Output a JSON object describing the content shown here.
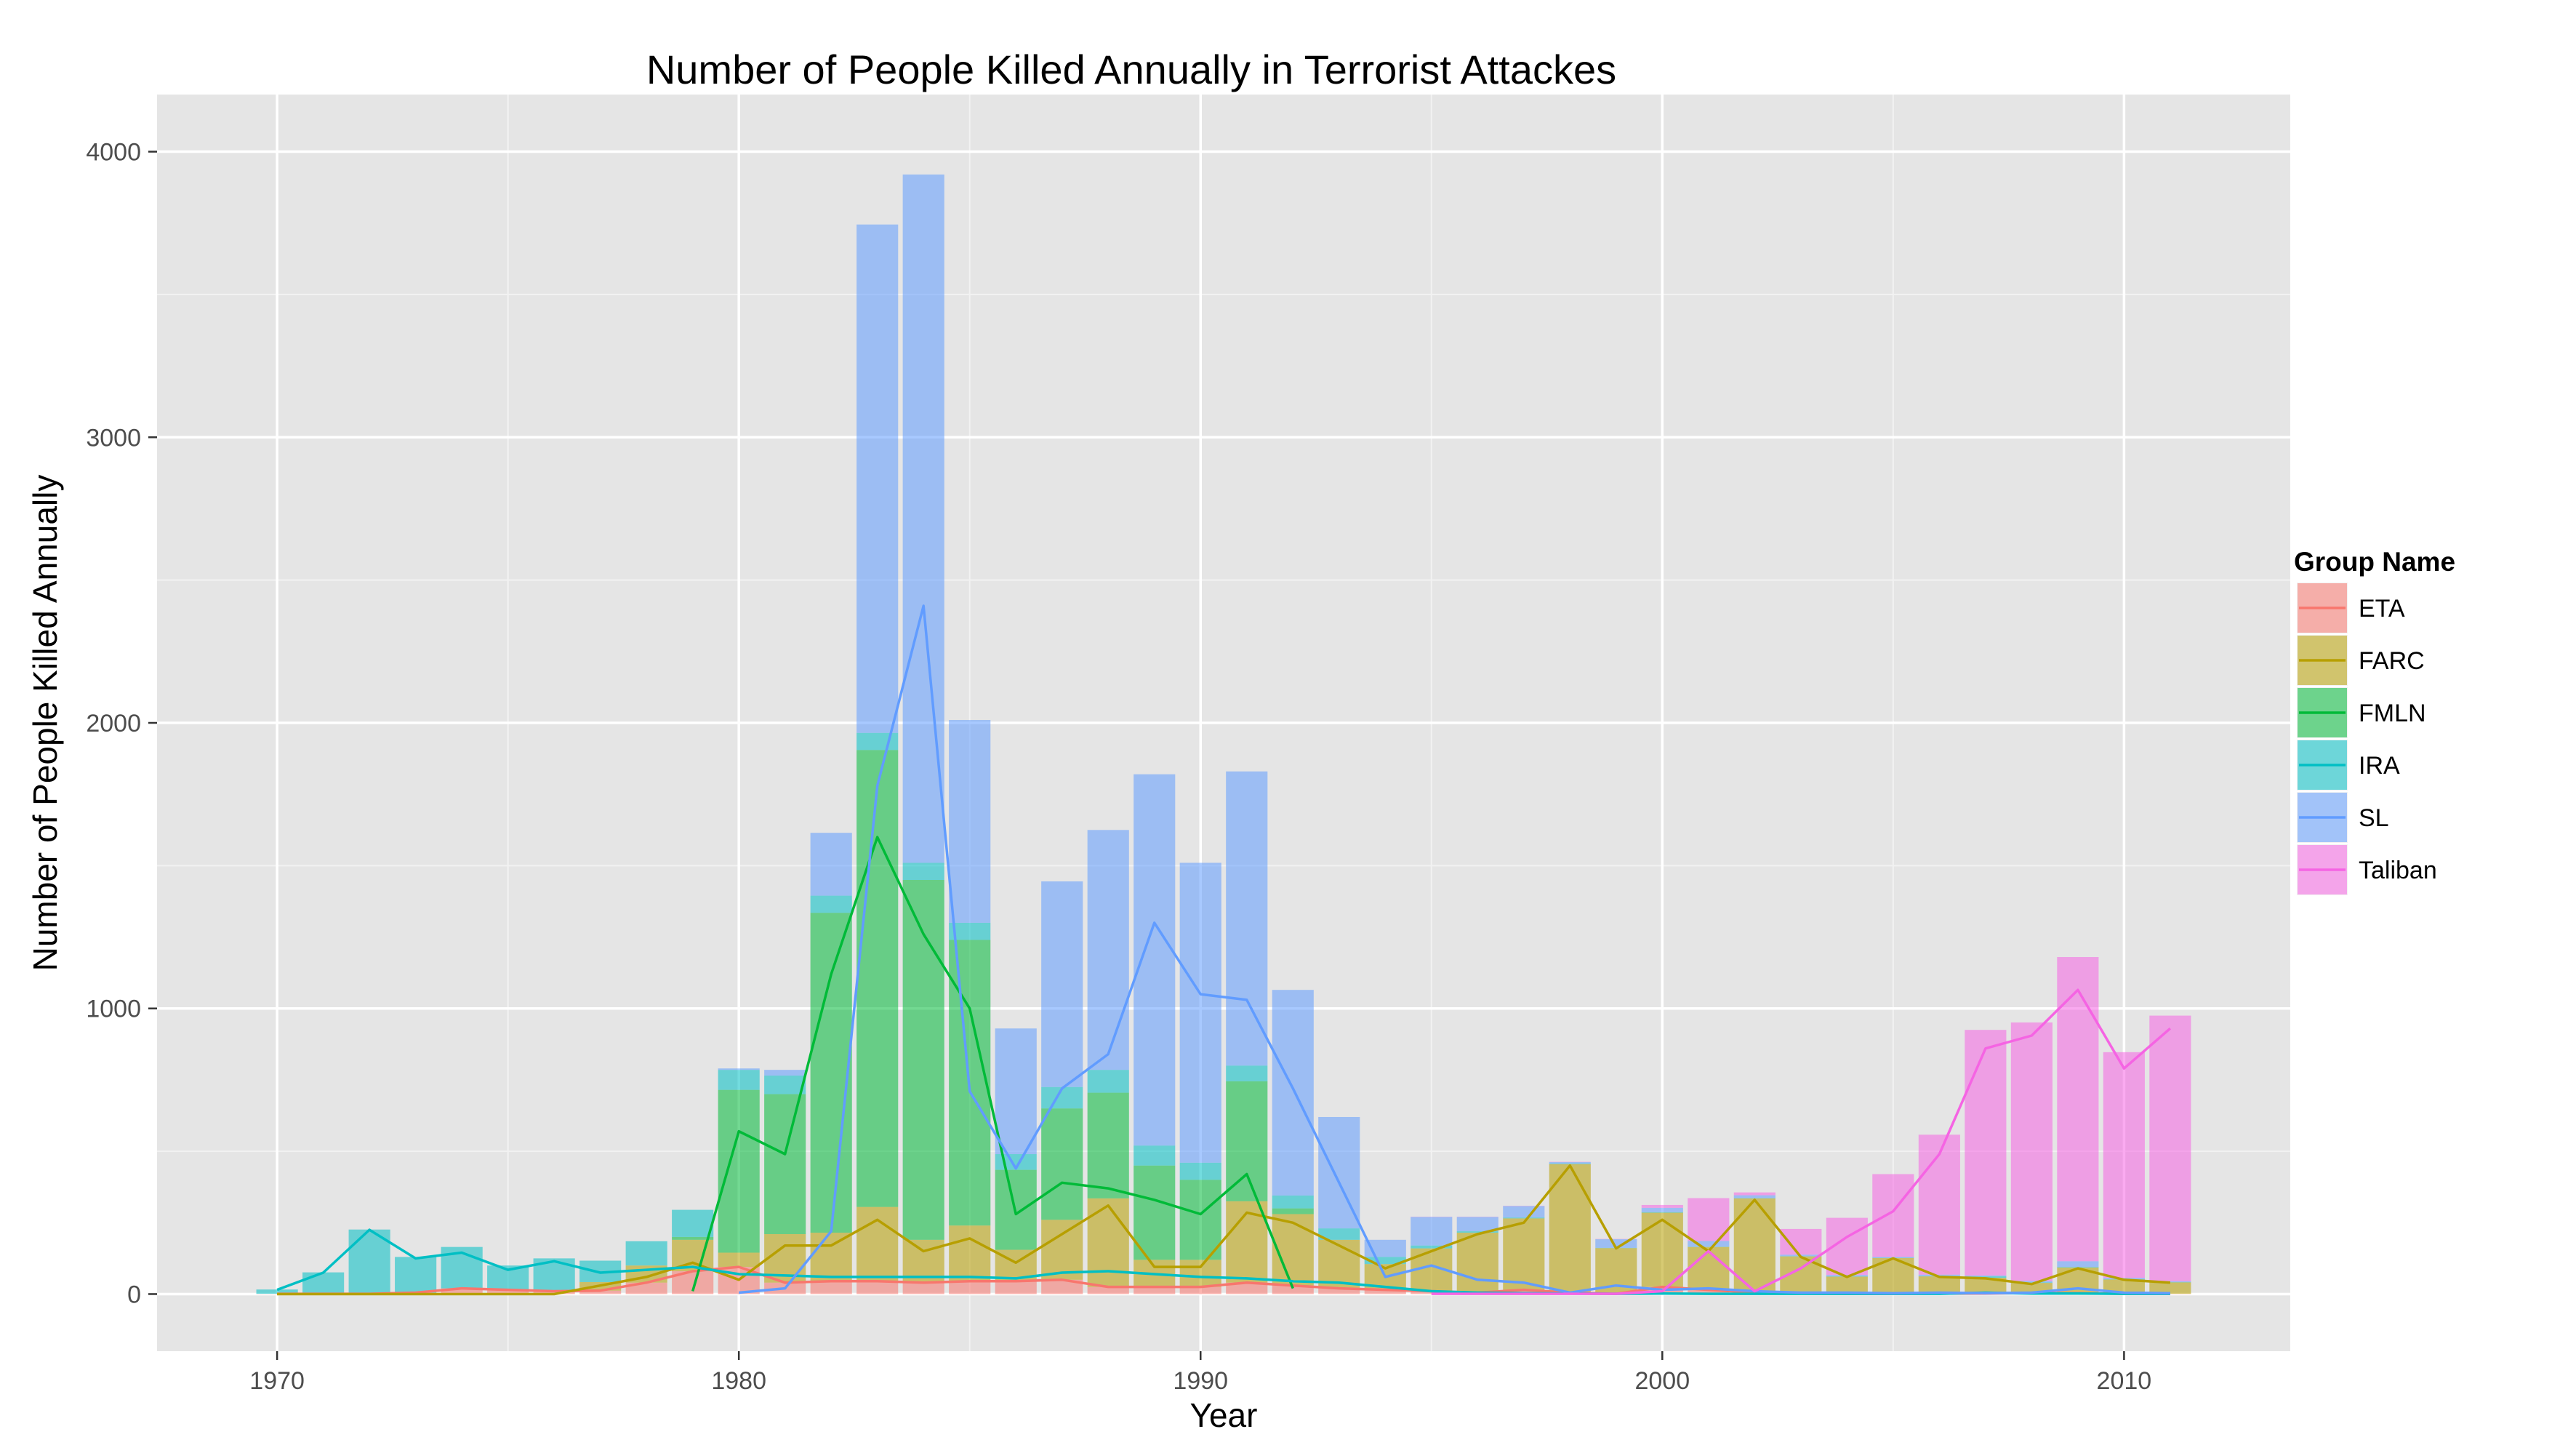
{
  "chart_data": {
    "type": "bar",
    "title": "Number of People Killed Annually in Terrorist Attackes",
    "xlabel": "Year",
    "ylabel": "Number of People Killed Annually",
    "xlim": [
      1967.4,
      2013.6
    ],
    "ylim": [
      -200,
      4200
    ],
    "x_ticks": [
      1970,
      1980,
      1990,
      2000,
      2010
    ],
    "y_ticks": [
      0,
      1000,
      2000,
      3000,
      4000
    ],
    "grid": true,
    "bar_stacking": "stacked",
    "legend": {
      "title": "Group Name",
      "position": "right",
      "entries": [
        "ETA",
        "FARC",
        "FMLN",
        "IRA",
        "SL",
        "Taliban"
      ]
    },
    "series": [
      {
        "name": "ETA",
        "color": "#F8766D",
        "x": [
          1970,
          1971,
          1972,
          1973,
          1974,
          1975,
          1976,
          1977,
          1978,
          1979,
          1980,
          1981,
          1982,
          1983,
          1984,
          1985,
          1986,
          1987,
          1988,
          1989,
          1990,
          1991,
          1992,
          1993,
          1994,
          1995,
          1996,
          1997,
          1998,
          1999,
          2000,
          2001,
          2002,
          2003,
          2004,
          2005,
          2006,
          2007,
          2008,
          2009,
          2010,
          2011
        ],
        "values": [
          1,
          1,
          1,
          5,
          20,
          15,
          10,
          12,
          40,
          80,
          95,
          40,
          45,
          45,
          40,
          45,
          45,
          50,
          25,
          25,
          25,
          40,
          30,
          20,
          15,
          10,
          5,
          15,
          5,
          1,
          25,
          15,
          5,
          2,
          1,
          1,
          2,
          2,
          4,
          3,
          1,
          1
        ]
      },
      {
        "name": "FARC",
        "color": "#B79F00",
        "x": [
          1970,
          1971,
          1972,
          1973,
          1974,
          1975,
          1976,
          1977,
          1978,
          1979,
          1980,
          1981,
          1982,
          1983,
          1984,
          1985,
          1986,
          1987,
          1988,
          1989,
          1990,
          1991,
          1992,
          1993,
          1994,
          1995,
          1996,
          1997,
          1998,
          1999,
          2000,
          2001,
          2002,
          2003,
          2004,
          2005,
          2006,
          2007,
          2008,
          2009,
          2010,
          2011
        ],
        "values": [
          0,
          0,
          0,
          0,
          0,
          0,
          0,
          30,
          60,
          110,
          50,
          170,
          170,
          260,
          150,
          195,
          110,
          210,
          310,
          95,
          95,
          285,
          250,
          170,
          90,
          150,
          210,
          250,
          450,
          160,
          260,
          150,
          330,
          130,
          60,
          125,
          60,
          55,
          35,
          90,
          50,
          40
        ]
      },
      {
        "name": "FMLN",
        "color": "#00BA38",
        "x": [
          1979,
          1980,
          1981,
          1982,
          1983,
          1984,
          1985,
          1986,
          1987,
          1988,
          1989,
          1990,
          1991,
          1992
        ],
        "values": [
          10,
          570,
          490,
          1120,
          1600,
          1260,
          1000,
          280,
          390,
          370,
          330,
          280,
          420,
          20
        ]
      },
      {
        "name": "IRA",
        "color": "#00BFC4",
        "x": [
          1970,
          1971,
          1972,
          1973,
          1974,
          1975,
          1976,
          1977,
          1978,
          1979,
          1980,
          1981,
          1982,
          1983,
          1984,
          1985,
          1986,
          1987,
          1988,
          1989,
          1990,
          1991,
          1992,
          1993,
          1994,
          1995,
          1996,
          1997,
          1998,
          1999,
          2000,
          2001,
          2002,
          2003,
          2004,
          2005,
          2006,
          2007,
          2008,
          2009,
          2010,
          2011
        ],
        "values": [
          15,
          75,
          225,
          125,
          145,
          85,
          115,
          75,
          85,
          95,
          70,
          65,
          60,
          60,
          60,
          60,
          55,
          75,
          80,
          70,
          60,
          55,
          45,
          40,
          25,
          10,
          5,
          3,
          2,
          1,
          2,
          1,
          1,
          1,
          1,
          1,
          1,
          5,
          2,
          2,
          1,
          1
        ]
      },
      {
        "name": "SL",
        "color": "#619CFF",
        "x": [
          1980,
          1981,
          1982,
          1983,
          1984,
          1985,
          1986,
          1987,
          1988,
          1989,
          1990,
          1991,
          1992,
          1993,
          1994,
          1995,
          1996,
          1997,
          1998,
          1999,
          2000,
          2001,
          2002,
          2003,
          2004,
          2005,
          2006,
          2007,
          2008,
          2009,
          2010,
          2011
        ],
        "values": [
          5,
          20,
          220,
          1780,
          2410,
          710,
          440,
          720,
          840,
          1300,
          1050,
          1030,
          720,
          390,
          60,
          100,
          50,
          40,
          5,
          30,
          15,
          20,
          10,
          5,
          5,
          3,
          5,
          3,
          5,
          20,
          5,
          3
        ]
      },
      {
        "name": "Taliban",
        "color": "#F564E3",
        "x": [
          1995,
          1996,
          1997,
          1998,
          1999,
          2000,
          2001,
          2002,
          2003,
          2004,
          2005,
          2006,
          2007,
          2008,
          2009,
          2010,
          2011
        ],
        "values": [
          1,
          1,
          1,
          1,
          1,
          10,
          150,
          10,
          90,
          200,
          290,
          490,
          860,
          905,
          1065,
          790,
          930
        ]
      }
    ]
  }
}
